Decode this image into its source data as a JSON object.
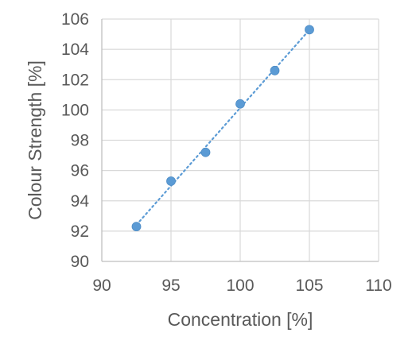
{
  "chart_data": {
    "type": "scatter",
    "title": "",
    "xlabel": "Concentration [%]",
    "ylabel": "Colour Strength [%]",
    "xlim": [
      90,
      110
    ],
    "ylim": [
      90,
      106
    ],
    "x_ticks": [
      90,
      95,
      100,
      105,
      110
    ],
    "y_ticks": [
      90,
      92,
      94,
      96,
      98,
      100,
      102,
      104,
      106
    ],
    "grid": true,
    "legend": "none",
    "series": [
      {
        "x": [
          92.5,
          95,
          97.5,
          100,
          102.5,
          105
        ],
        "y": [
          92.3,
          95.3,
          97.2,
          100.4,
          102.6,
          105.3
        ],
        "color": "#5B9BD5",
        "trendline": "linear",
        "trendline_style": "dotted"
      }
    ]
  }
}
